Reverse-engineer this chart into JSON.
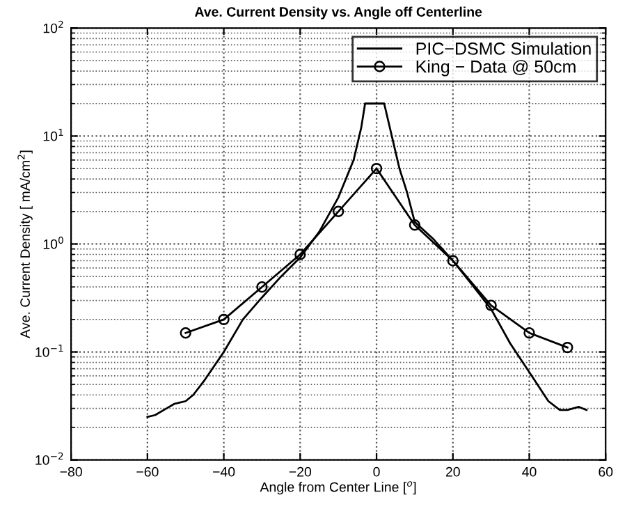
{
  "chart_data": {
    "type": "line",
    "title": "Ave. Current Density vs. Angle off Centerline",
    "xlabel": "Angle from Center Line [$^{o}$]",
    "ylabel": "Ave. Current Density [ mA/cm$^{2}$]",
    "log": "y",
    "grid": true,
    "legend": "top right",
    "xlim": [
      -80,
      60
    ],
    "xticks": [
      {
        "value": -80,
        "label": "−80"
      },
      {
        "value": -60,
        "label": "−60"
      },
      {
        "value": -40,
        "label": "−40"
      },
      {
        "value": -20,
        "label": "−20"
      },
      0,
      20,
      40,
      60
    ],
    "ylim": [
      0.01,
      100
    ],
    "yticks": [
      {
        "value": 0.01,
        "label": "10$^{−2}$"
      },
      {
        "value": 0.1,
        "label": "10$^{−1}$"
      },
      {
        "value": 1,
        "label": "10$^{0}$"
      },
      {
        "value": 10,
        "label": "10$^{1}$"
      },
      {
        "value": 100,
        "label": "10$^{2}$"
      }
    ],
    "series": [
      {
        "name": "PIC−DSMC Simulation",
        "color": "#000000",
        "marker": "none",
        "x": [
          -60,
          -58,
          -55,
          -53,
          -50,
          -48,
          -45,
          -40,
          -35,
          -30,
          -25,
          -20,
          -15,
          -10,
          -6,
          -4,
          -3,
          0,
          2,
          4,
          6,
          8,
          10,
          15,
          20,
          25,
          30,
          35,
          40,
          45,
          48,
          50,
          53,
          55
        ],
        "values": [
          0.025,
          0.026,
          0.03,
          0.033,
          0.035,
          0.04,
          0.055,
          0.1,
          0.2,
          0.32,
          0.5,
          0.75,
          1.3,
          2.7,
          6,
          12,
          20,
          20,
          20,
          10,
          5,
          3,
          1.6,
          1.1,
          0.7,
          0.42,
          0.25,
          0.12,
          0.065,
          0.035,
          0.029,
          0.029,
          0.031,
          0.029
        ]
      },
      {
        "name": "King − Data @ 50cm",
        "color": "#000000",
        "marker": "circle",
        "x": [
          -50,
          -40,
          -30,
          -20,
          -10,
          0,
          10,
          20,
          30,
          40,
          50
        ],
        "values": [
          0.15,
          0.2,
          0.4,
          0.8,
          2,
          5,
          1.5,
          0.7,
          0.27,
          0.15,
          0.11
        ]
      }
    ]
  }
}
